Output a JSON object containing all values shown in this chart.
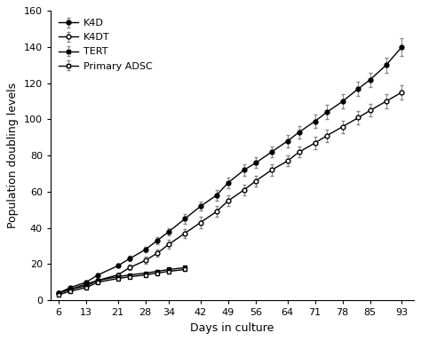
{
  "x_ticks": [
    6,
    13,
    21,
    28,
    34,
    42,
    49,
    56,
    64,
    71,
    78,
    85,
    93
  ],
  "K4D": {
    "x": [
      6,
      9,
      13,
      16,
      21,
      24,
      28,
      31,
      34,
      38,
      42,
      46,
      49,
      53,
      56,
      60,
      64,
      67,
      71,
      74,
      78,
      82,
      85,
      89,
      93
    ],
    "y": [
      4,
      7,
      10,
      14,
      19,
      23,
      28,
      33,
      38,
      45,
      52,
      58,
      65,
      72,
      76,
      82,
      88,
      93,
      99,
      104,
      110,
      117,
      122,
      130,
      140
    ],
    "yerr": [
      0.5,
      0.5,
      1,
      1,
      1,
      1.5,
      1.5,
      2,
      2,
      2.5,
      2.5,
      3,
      3,
      3,
      3,
      3,
      3.5,
      3.5,
      3.5,
      4,
      4,
      4,
      4,
      4,
      5
    ],
    "color": "#000000",
    "marker": "o",
    "fillstyle": "full",
    "label": "K4D"
  },
  "K4DT": {
    "x": [
      6,
      9,
      13,
      16,
      21,
      24,
      28,
      31,
      34,
      38,
      42,
      46,
      49,
      53,
      56,
      60,
      64,
      67,
      71,
      74,
      78,
      82,
      85,
      89,
      93
    ],
    "y": [
      4,
      6,
      8,
      11,
      14,
      18,
      22,
      26,
      31,
      37,
      43,
      49,
      55,
      61,
      66,
      72,
      77,
      82,
      87,
      91,
      96,
      101,
      105,
      110,
      115
    ],
    "yerr": [
      0.5,
      0.5,
      1,
      1,
      1.5,
      1.5,
      2,
      2,
      2.5,
      2.5,
      3,
      3,
      3,
      3,
      3,
      3,
      3,
      3,
      3.5,
      3.5,
      3.5,
      3.5,
      3.5,
      4,
      4
    ],
    "color": "#000000",
    "marker": "o",
    "fillstyle": "none",
    "label": "K4DT"
  },
  "TERT": {
    "x": [
      6,
      9,
      13,
      16,
      21,
      24,
      28,
      31,
      34,
      38
    ],
    "y": [
      4,
      6,
      9,
      11,
      13,
      14,
      15,
      16,
      17,
      18
    ],
    "yerr": [
      0.3,
      0.3,
      0.5,
      0.5,
      0.5,
      0.5,
      0.5,
      0.5,
      0.5,
      0.7
    ],
    "color": "#000000",
    "marker": "s",
    "fillstyle": "full",
    "label": "TERT"
  },
  "Primary_ADSC": {
    "x": [
      6,
      9,
      13,
      16,
      21,
      24,
      28,
      31,
      34,
      38
    ],
    "y": [
      3,
      5,
      7,
      10,
      12,
      13,
      14,
      15,
      16,
      17
    ],
    "yerr": [
      0.3,
      0.3,
      0.5,
      0.5,
      0.5,
      0.5,
      0.5,
      0.5,
      0.5,
      0.7
    ],
    "color": "#000000",
    "marker": "s",
    "fillstyle": "none",
    "label": "Primary ADSC"
  },
  "xlabel": "Days in culture",
  "ylabel": "Population doubling levels",
  "ylim": [
    0,
    160
  ],
  "xlim": [
    4,
    96
  ],
  "yticks": [
    0,
    20,
    40,
    60,
    80,
    100,
    120,
    140,
    160
  ],
  "background_color": "#ffffff",
  "figsize": [
    4.74,
    3.84
  ],
  "dpi": 100
}
